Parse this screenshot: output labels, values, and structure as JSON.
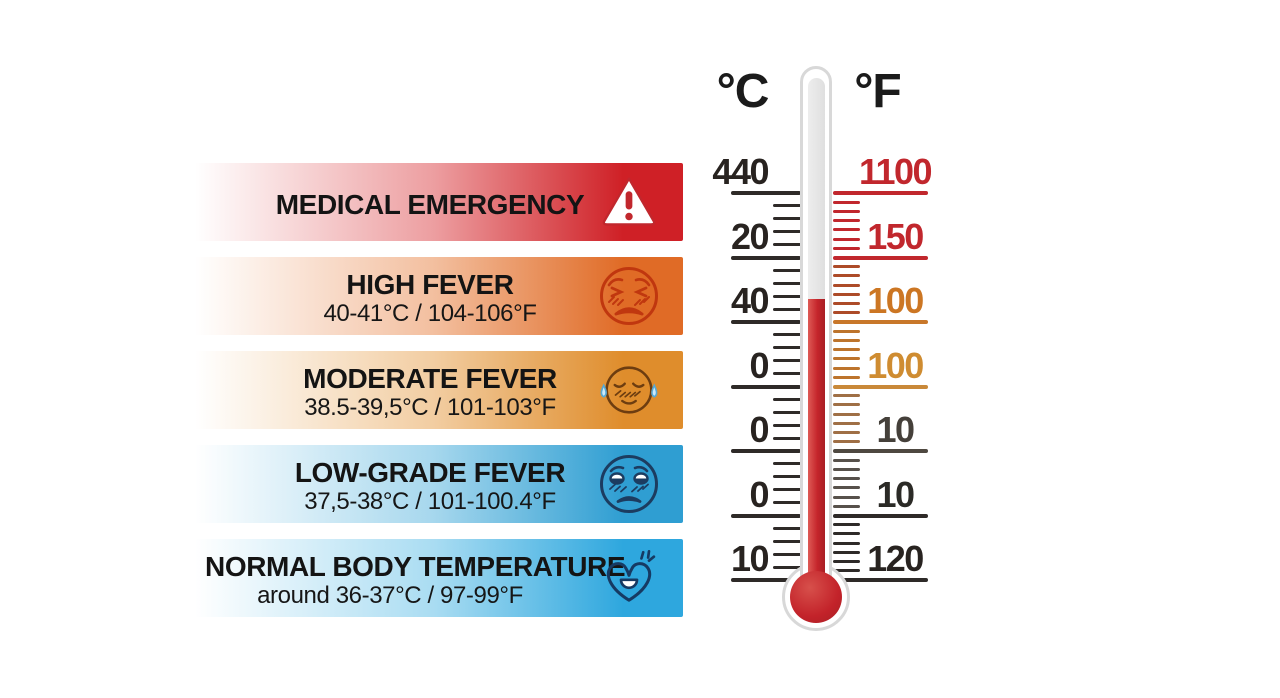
{
  "bands": [
    {
      "title": "MEDICAL EMERGENCY",
      "subtitle": "",
      "color_soft": "rgba(214,40,45,0.45)",
      "color": "#cf2026",
      "icon": "warning-triangle-icon",
      "icon_color": "#c1272d"
    },
    {
      "title": "HIGH FEVER",
      "subtitle": "40-41°C / 104-106°F",
      "color_soft": "rgba(228,113,42,0.45)",
      "color": "#e06b26",
      "icon": "high-fever-face-icon",
      "icon_color": "#c0370f"
    },
    {
      "title": "MODERATE FEVER",
      "subtitle": "38.5-39,5°C / 101-103°F",
      "color_soft": "rgba(226,144,47,0.45)",
      "color": "#df8d2c",
      "icon": "moderate-fever-face-icon",
      "icon_color": "#6d3d10"
    },
    {
      "title": "LOW-GRADE FEVER",
      "subtitle": "37,5-38°C / 101-100.4°F",
      "color_soft": "rgba(58,167,216,0.45)",
      "color": "#2f9ed2",
      "icon": "low-grade-fever-face-icon",
      "icon_color": "#1c3c60"
    },
    {
      "title": "NORMAL BODY TEMPERATURE",
      "subtitle": "around 36-37°C / 97-99°F",
      "color_soft": "rgba(65,178,226,0.45)",
      "color": "#2ea7de",
      "icon": "healthy-heart-icon",
      "icon_color": "#163a63"
    }
  ],
  "scale": {
    "c_header": "°C",
    "f_header": "°F",
    "rows": [
      {
        "c": "440",
        "f": "1100",
        "c_color": "#282320",
        "f_color": "#c1272d",
        "left_line": "#2e2a28",
        "right_line": "#c1272d"
      },
      {
        "c": "20",
        "f": "150",
        "c_color": "#282320",
        "f_color": "#c1272d",
        "left_line": "#2e2a28",
        "right_line": "#c1272d"
      },
      {
        "c": "40",
        "f": "100",
        "c_color": "#282320",
        "f_color": "#cc7623",
        "left_line": "#2e2a28",
        "right_line": "#c8772a"
      },
      {
        "c": "0",
        "f": "100",
        "c_color": "#282320",
        "f_color": "#cf8c31",
        "left_line": "#2e2a28",
        "right_line": "#c98939"
      },
      {
        "c": "0",
        "f": "10",
        "c_color": "#282320",
        "f_color": "#45403a",
        "left_line": "#2e2a28",
        "right_line": "#4e4840"
      },
      {
        "c": "0",
        "f": "10",
        "c_color": "#282320",
        "f_color": "#2b2a26",
        "left_line": "#2e2a28",
        "right_line": "#2e2a28"
      },
      {
        "c": "10",
        "f": "120",
        "c_color": "#282320",
        "f_color": "#282320",
        "left_line": "#2e2a28",
        "right_line": "#2e2a28"
      }
    ],
    "segments": [
      {
        "left": "#2e2a28",
        "right": "#c1272d"
      },
      {
        "left": "#2e2a28",
        "right": "#ad4b28"
      },
      {
        "left": "#2e2a28",
        "right": "#bd742c"
      },
      {
        "left": "#2e2a28",
        "right": "#9f6f45"
      },
      {
        "left": "#2e2a28",
        "right": "#57514b"
      },
      {
        "left": "#2e2a28",
        "right": "#2e2a28"
      }
    ]
  },
  "thermometer": {
    "tube_color": "#e2e2e2",
    "mercury_color": "#c5252b",
    "bulb_color": "#c3232a",
    "outline_color": "#d8d8d8"
  }
}
